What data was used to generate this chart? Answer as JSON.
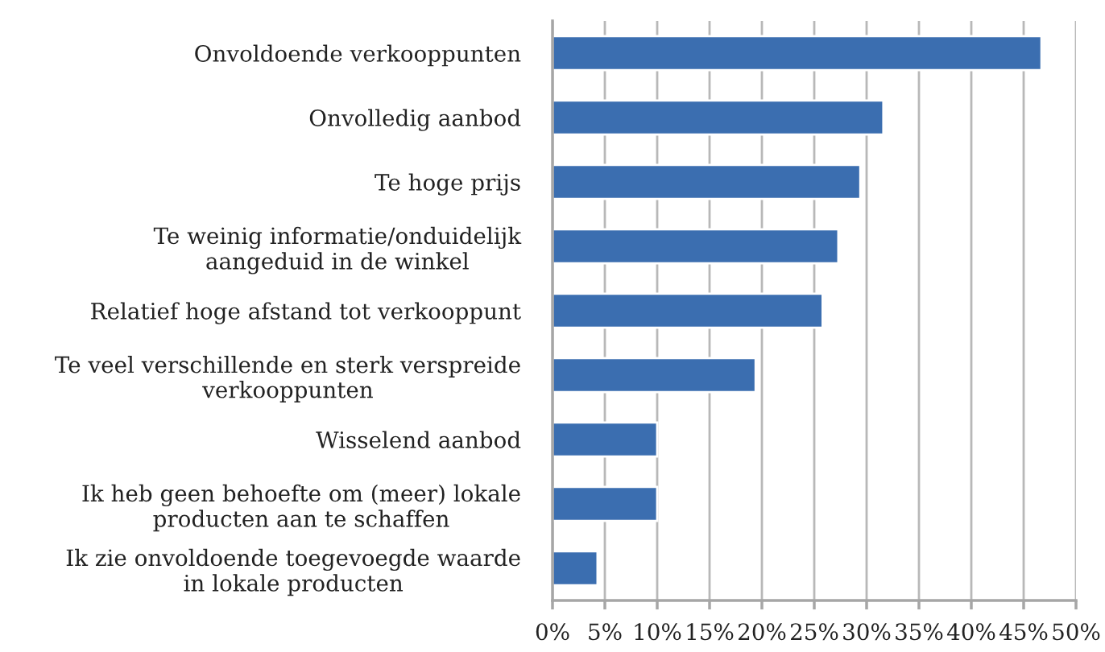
{
  "chart_data": {
    "type": "bar",
    "orientation": "horizontal",
    "categories": [
      "Onvoldoende verkooppunten",
      "Onvolledig aanbod",
      "Te hoge prijs",
      "Te weinig informatie/onduidelijk aangeduid in de winkel",
      "Relatief hoge afstand tot verkooppunt",
      "Te veel verschillende en sterk verspreide verkooppunten",
      "Wisselend aanbod",
      "Ik heb geen behoefte om (meer) lokale producten aan te schaffen",
      "Ik zie onvoldoende toegevoegde waarde in lokale producten"
    ],
    "series": [
      {
        "color": "#3b6eb0",
        "values": [
          46.7,
          31.6,
          29.4,
          27.3,
          25.8,
          19.4,
          10.0,
          10.0,
          4.3
        ]
      }
    ],
    "xlim": [
      0,
      50
    ],
    "xticks": [
      {
        "value": 0,
        "label": "0%"
      },
      {
        "value": 5,
        "label": "5%"
      },
      {
        "value": 10,
        "label": "10%"
      },
      {
        "value": 15,
        "label": "15%"
      },
      {
        "value": 20,
        "label": "20%"
      },
      {
        "value": 25,
        "label": "25%"
      },
      {
        "value": 30,
        "label": "30%"
      },
      {
        "value": 35,
        "label": "35%"
      },
      {
        "value": 40,
        "label": "40%"
      },
      {
        "value": 45,
        "label": "45%"
      },
      {
        "value": 50,
        "label": "50%"
      }
    ],
    "grid": "x"
  }
}
